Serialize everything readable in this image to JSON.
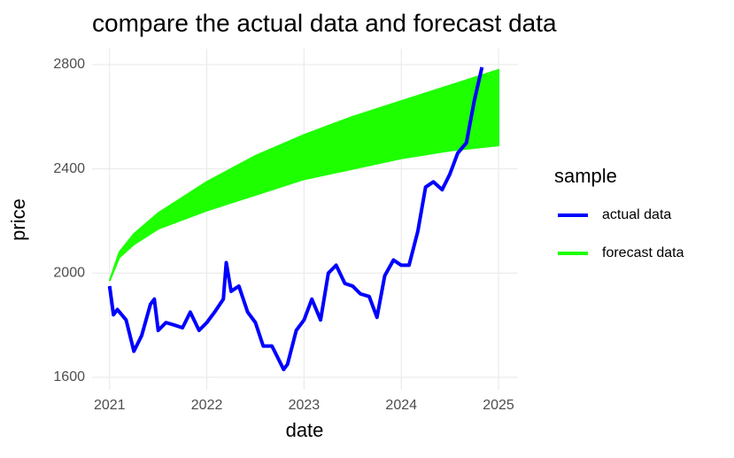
{
  "chart_data": {
    "type": "line",
    "title": "compare the actual data and forecast data",
    "x_label": "date",
    "y_label": "price",
    "legend_title": "sample",
    "legend_position": "right",
    "grid": true,
    "xlim": [
      2020.82,
      2025.2
    ],
    "xticks": [
      2021,
      2022,
      2023,
      2024,
      2025
    ],
    "ylim": [
      1552,
      2861
    ],
    "yticks": [
      1600,
      2000,
      2400,
      2800
    ],
    "series": [
      {
        "name": "actual data",
        "color": "#0000ff",
        "x": [
          2021.0,
          2021.04,
          2021.08,
          2021.17,
          2021.25,
          2021.33,
          2021.42,
          2021.46,
          2021.5,
          2021.58,
          2021.67,
          2021.75,
          2021.83,
          2021.92,
          2022.0,
          2022.08,
          2022.17,
          2022.2,
          2022.25,
          2022.33,
          2022.42,
          2022.5,
          2022.58,
          2022.67,
          2022.75,
          2022.79,
          2022.83,
          2022.92,
          2023.0,
          2023.08,
          2023.17,
          2023.25,
          2023.33,
          2023.42,
          2023.5,
          2023.58,
          2023.67,
          2023.75,
          2023.83,
          2023.92,
          2024.0,
          2024.08,
          2024.17,
          2024.25,
          2024.33,
          2024.42,
          2024.5,
          2024.58,
          2024.67,
          2024.75,
          2024.83
        ],
        "values": [
          1950,
          1840,
          1860,
          1820,
          1700,
          1760,
          1880,
          1900,
          1780,
          1810,
          1800,
          1790,
          1850,
          1780,
          1810,
          1850,
          1900,
          2040,
          1930,
          1950,
          1850,
          1810,
          1720,
          1720,
          1660,
          1630,
          1650,
          1780,
          1820,
          1900,
          1820,
          2000,
          2030,
          1960,
          1950,
          1920,
          1910,
          1830,
          1990,
          2050,
          2030,
          2030,
          2160,
          2330,
          2350,
          2320,
          2380,
          2460,
          2500,
          2660,
          2790
        ]
      },
      {
        "name": "forecast data",
        "color": "#1eff00",
        "x": [
          2021.0,
          2021.1,
          2021.25,
          2021.5,
          2022.0,
          2022.5,
          2023.0,
          2023.5,
          2024.0,
          2024.5,
          2025.0
        ],
        "lower": [
          1970,
          2060,
          2110,
          2170,
          2240,
          2300,
          2360,
          2400,
          2440,
          2470,
          2490
        ],
        "upper": [
          1970,
          2080,
          2150,
          2230,
          2350,
          2450,
          2530,
          2600,
          2660,
          2720,
          2780
        ]
      }
    ]
  }
}
